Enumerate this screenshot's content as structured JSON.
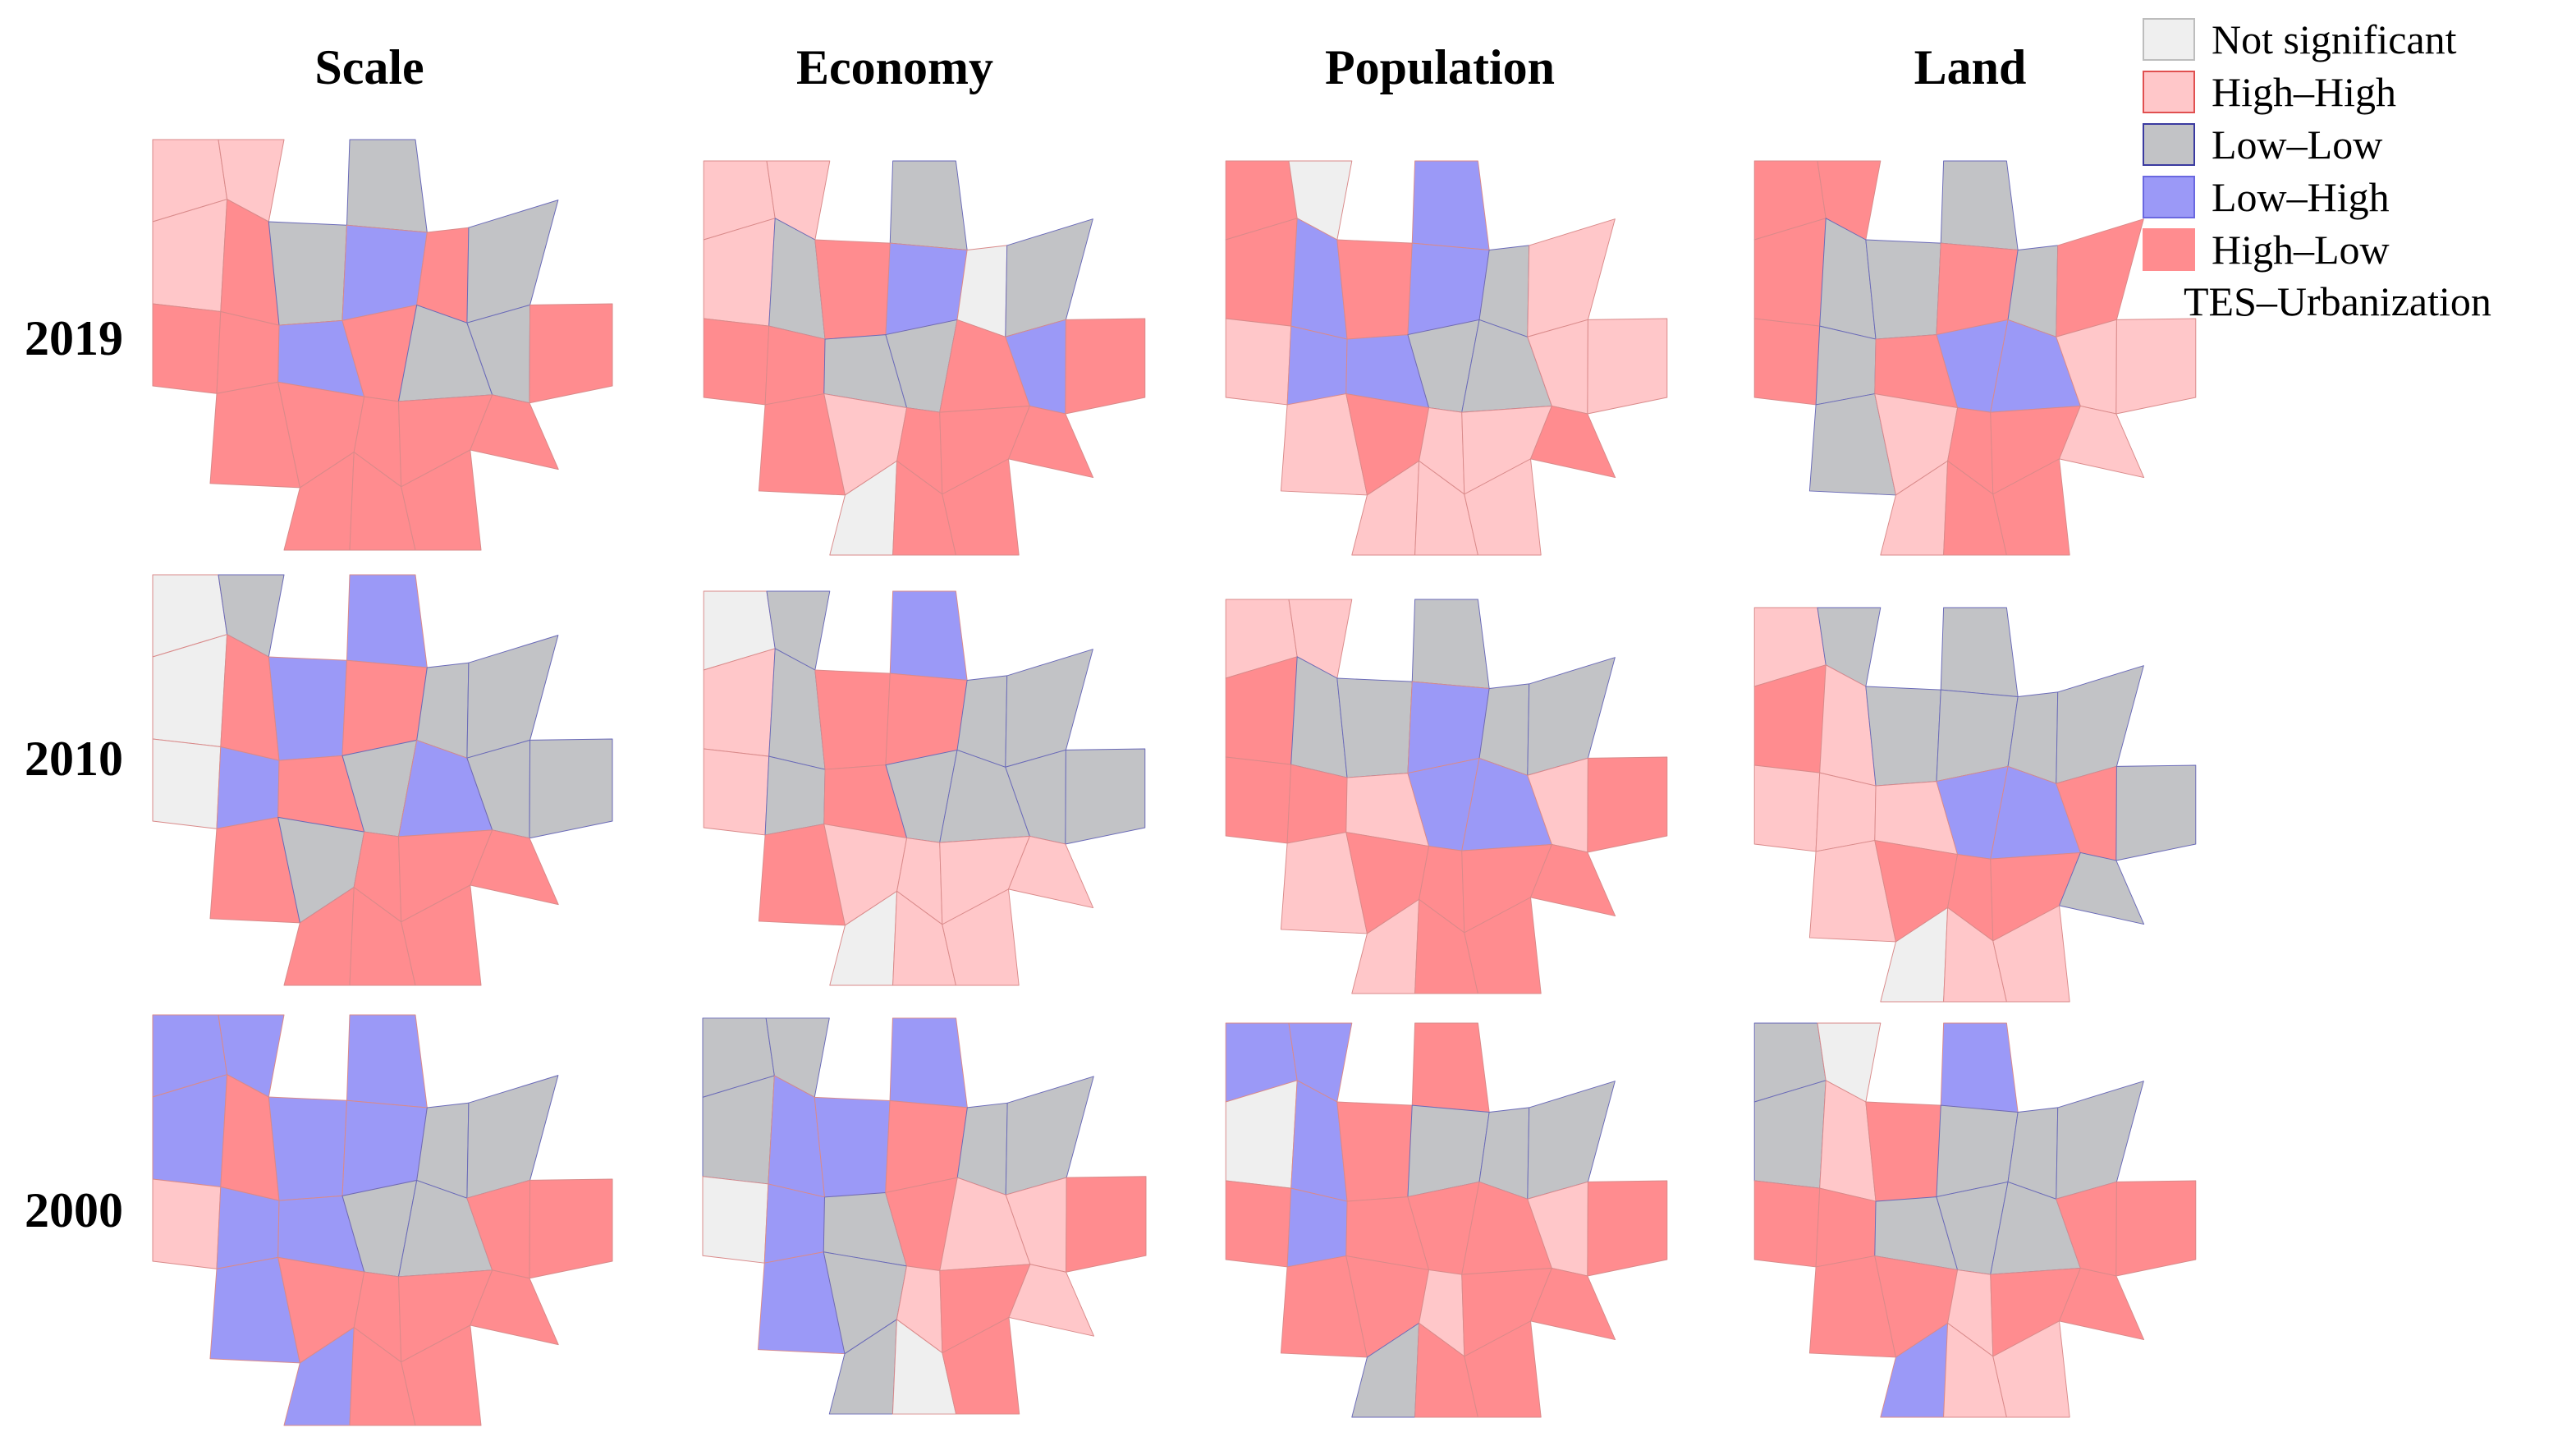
{
  "columns": [
    "Scale",
    "Economy",
    "Population",
    "Land"
  ],
  "rows": [
    "2019",
    "2010",
    "2000"
  ],
  "legend": {
    "items": [
      {
        "key": "ns",
        "label": "Not significant",
        "color": "#efefef",
        "border": "#bdbdbd"
      },
      {
        "key": "hh",
        "label": "High–High",
        "color": "#ffc7c9",
        "border": "#e05050"
      },
      {
        "key": "ll",
        "label": "Low–Low",
        "color": "#c2c3c6",
        "border": "#3a3aa0"
      },
      {
        "key": "lh",
        "label": "Low–High",
        "color": "#9b99f7",
        "border": "#6a68e0"
      },
      {
        "key": "hl",
        "label": "High–Low",
        "color": "#ff8c8f",
        "border": "#ff8c8f"
      }
    ],
    "caption": "TES–Urbanization"
  },
  "maps": [
    [
      "hh hh hh ll ns lh hh | hh hl ll lh hl ll hl | hl hl lh hl ll ll hl | ll hl hl hl hl hl hl | ll ns hl hl hl hl hl",
      "hh hh lh ll hl hh hh | hh ll hl lh ns ll hl | hl hl ll ll hl lh hl | ll hl hh hl hl hl hl | ll ll ns hl hl hl hl",
      "hl ns lh lh hh hh hh | hl lh hl lh ll hh hh | hh lh lh ll ll hh hh | hl hh hl hh hh hl hh | lh lh hh hh hh hh hh",
      "hl hl ll ll hl hl hh | hl ll ll hl ll hl hh | hl ll hl lh lh hh hh | hl ll hh hl hl hh hh | lh lh hh hl hl hh hh"
    ],
    [
      "ns ll lh lh ll ll ll | ns hl lh hl ll ll ll | ns lh hl ll lh ll ll | hl hl ll hl hl hl ll | ns ns hl hl hl hl hl",
      "ns ll ll lh lh ll ll | hh ll hl hl ll ll ns | hh ll hl ll ll ll ll | hh hl hh hh hh hh hh | ns lh ns hh hh hh hh",
      "hh hh lh ll ll ll ll | hl ll ll lh ll ll ll | hl hl hh lh lh hh hl | hl hh hl hl hl hl hl | lh lh hh hl hl hl hl",
      "hh ll ll ll ll ll ll | hl hh ll ll ll ll ll | hh hh hh lh lh hl ll | hh hh hl hl hl ll ll | lh lh ns hh hh hl hl"
    ],
    [
      "lh lh hh lh lh ll ll | lh hl lh lh ll ll ll | hh lh lh ll ll hl hl | ns lh hl hl hl hl hl | ll lh lh hl hl hl hl",
      "ll ll hl lh lh ll ll | ll lh lh hl ll ll ns | ns lh ll hl hh hh hl | ns lh ll hh hl hh hl | ll lh ll ns hl hl hl",
      "lh lh hl hl ll ll ll | ns lh hl ll ll ll ll | hl lh hl hl hl hh hl | hl hl hl hh hl hl hh | ns ll ll hl hl hl hl",
      "ll ns hl lh ll ll ll | ll hh hl ll ll ll hh | hl hl ll ll ll hl hl | hl hl hl hh hl hl hl | lh lh lh hh hh hh hh"
    ]
  ]
}
